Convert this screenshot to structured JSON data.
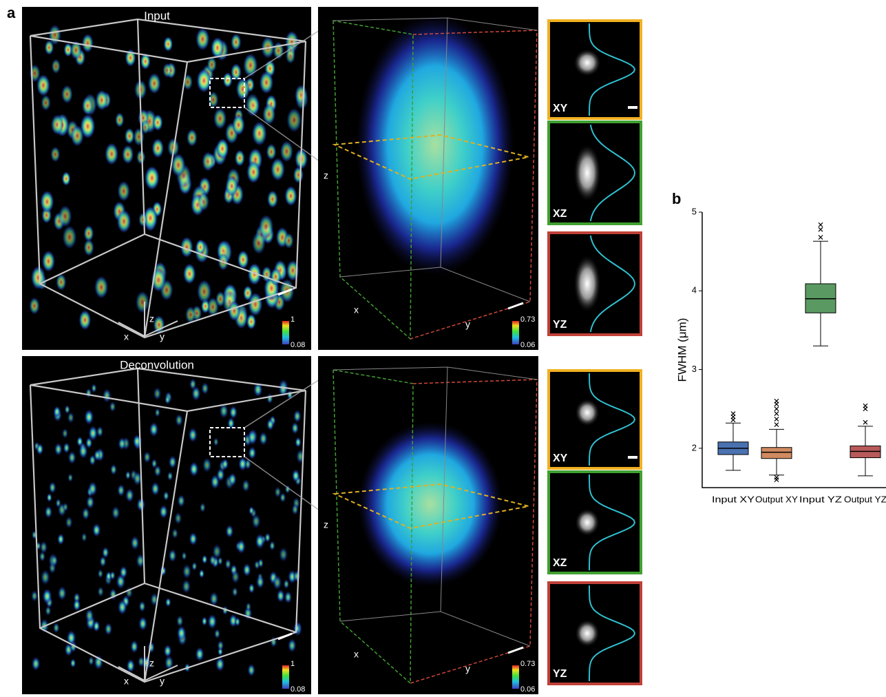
{
  "panel_a": {
    "label": "a",
    "rows": [
      {
        "title": "Input",
        "overview": {
          "axes": {
            "x": "x",
            "y": "y",
            "z": "z"
          },
          "colorbar": {
            "max": 1,
            "min": 0.08
          }
        },
        "zoom": {
          "axes": {
            "x": "x",
            "y": "y",
            "z": "z"
          },
          "colorbar": {
            "max": 0.73,
            "min": 0.06
          }
        },
        "profiles": [
          "XY",
          "XZ",
          "YZ"
        ]
      },
      {
        "title": "Deconvolution",
        "overview": {
          "axes": {
            "x": "x",
            "y": "y",
            "z": "z"
          },
          "colorbar": {
            "max": 1,
            "min": 0.08
          }
        },
        "zoom": {
          "axes": {
            "x": "x",
            "y": "y",
            "z": "z"
          },
          "colorbar": {
            "max": 0.73,
            "min": 0.06
          }
        },
        "profiles": [
          "XY",
          "XZ",
          "YZ"
        ]
      }
    ]
  },
  "chart_data": {
    "type": "box",
    "label": "b",
    "ylabel": "FWHM (μm)",
    "categories": [
      "Input XY",
      "Output XY",
      "Input YZ",
      "Output YZ"
    ],
    "colors": [
      "#4a72b0",
      "#d08a60",
      "#5a9a62",
      "#b85a5a"
    ],
    "boxes": [
      {
        "whislo": 1.72,
        "q1": 1.92,
        "med": 2.0,
        "q3": 2.08,
        "whishi": 2.32,
        "outliers": [
          2.36,
          2.4,
          2.44
        ]
      },
      {
        "whislo": 1.66,
        "q1": 1.87,
        "med": 1.95,
        "q3": 2.01,
        "whishi": 2.24,
        "outliers": [
          1.6,
          1.63,
          2.3,
          2.37,
          2.44,
          2.5,
          2.56,
          2.6
        ]
      },
      {
        "whislo": 3.3,
        "q1": 3.72,
        "med": 3.9,
        "q3": 4.09,
        "whishi": 4.63,
        "outliers": [
          4.68,
          4.78,
          4.84
        ]
      },
      {
        "whislo": 1.65,
        "q1": 1.88,
        "med": 1.96,
        "q3": 2.03,
        "whishi": 2.28,
        "outliers": [
          2.33,
          2.5,
          2.54
        ]
      }
    ],
    "ylim": [
      1.5,
      5
    ],
    "yticks": [
      2,
      3,
      4,
      5
    ]
  }
}
